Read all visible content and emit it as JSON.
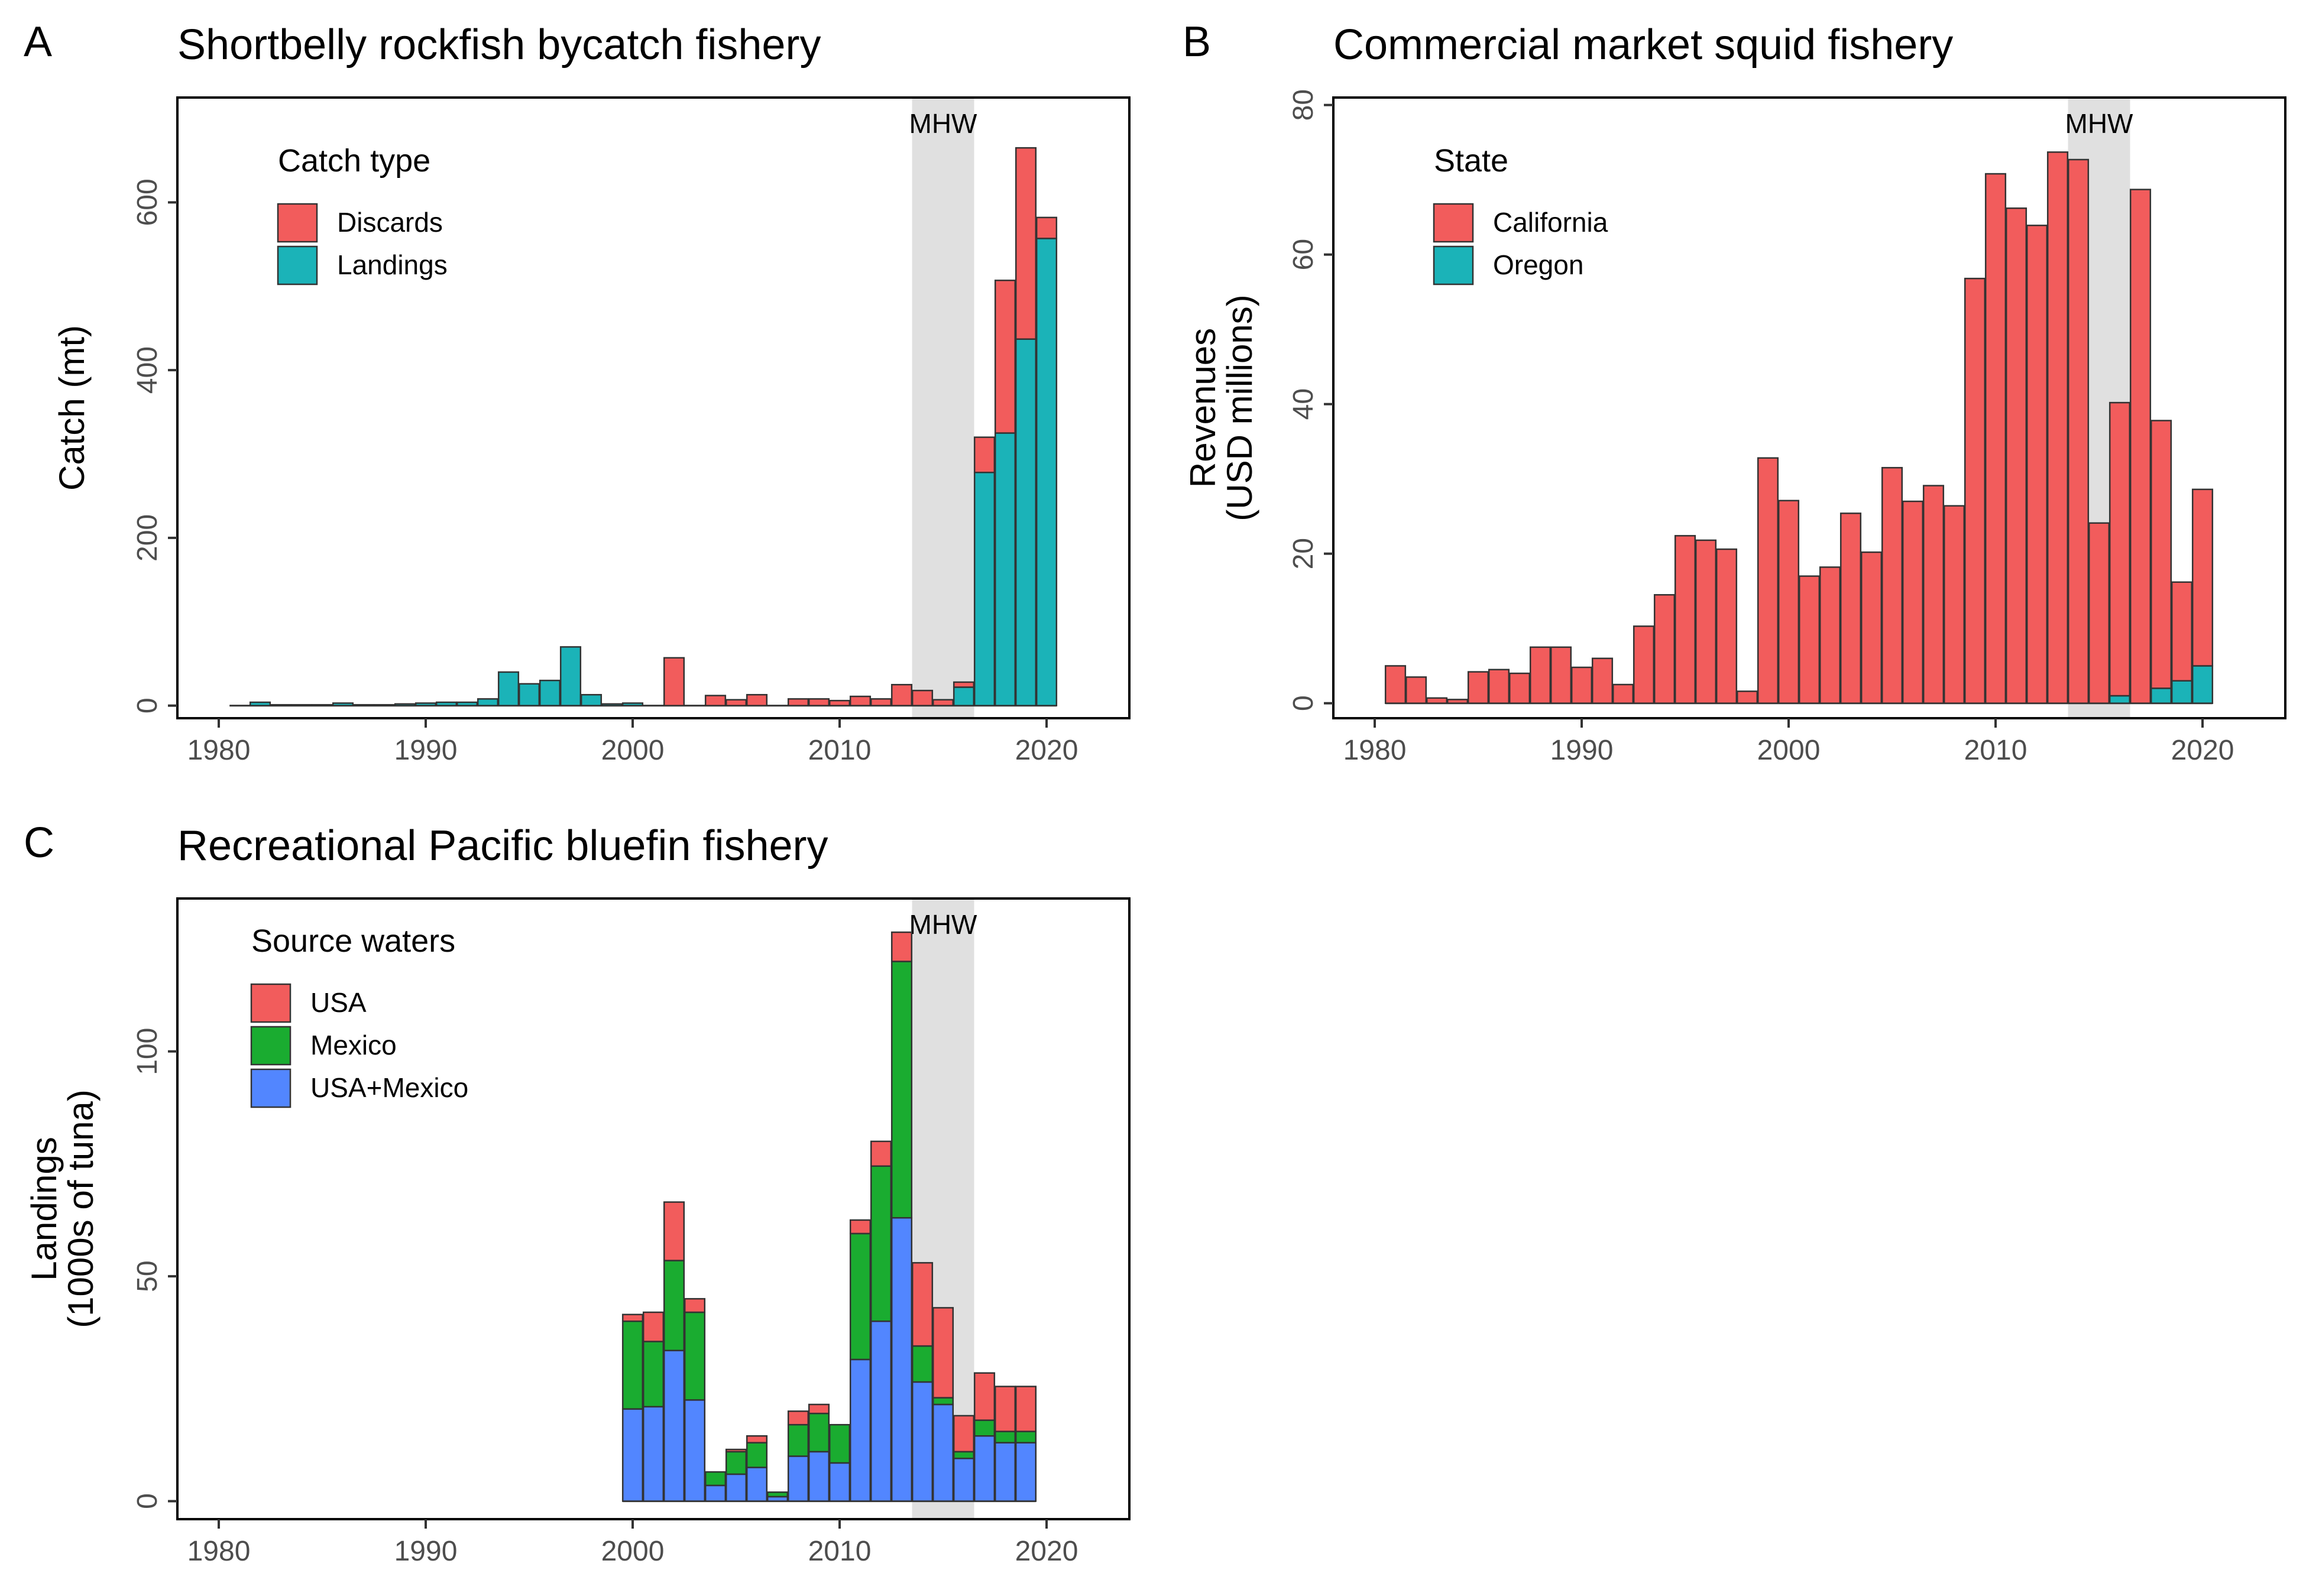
{
  "chart_data": [
    {
      "panel": "A",
      "type": "bar",
      "stacked": true,
      "title": "Shortbelly rockfish bycatch fishery",
      "xlabel": "",
      "ylabel": "Catch (mt)",
      "xlim": [
        1978,
        2024
      ],
      "ylim": [
        -15,
        725
      ],
      "xticks": [
        1980,
        1990,
        2000,
        2010,
        2020
      ],
      "yticks": [
        0,
        200,
        400,
        600
      ],
      "annotation": {
        "text": "MHW",
        "x_range": [
          2013.5,
          2016.5
        ]
      },
      "legend": {
        "title": "Catch type",
        "position": "top-left"
      },
      "x": [
        1981,
        1982,
        1983,
        1984,
        1985,
        1986,
        1987,
        1988,
        1989,
        1990,
        1991,
        1992,
        1993,
        1994,
        1995,
        1996,
        1997,
        1998,
        1999,
        2000,
        2001,
        2002,
        2003,
        2004,
        2005,
        2006,
        2007,
        2008,
        2009,
        2010,
        2011,
        2012,
        2013,
        2014,
        2015,
        2016,
        2017,
        2018,
        2019,
        2020
      ],
      "series": [
        {
          "name": "Landings",
          "color": "#1bb3b8",
          "values": [
            0,
            4,
            1,
            1,
            1,
            3,
            1,
            1,
            2,
            3,
            4,
            4,
            8,
            40,
            26,
            30,
            70,
            13,
            2,
            3,
            0,
            0,
            0,
            0,
            0,
            0,
            0,
            0,
            0,
            0,
            0,
            0,
            0,
            0,
            0,
            22,
            278,
            325,
            437,
            557
          ]
        },
        {
          "name": "Discards",
          "color": "#f25c5c",
          "values": [
            0,
            0,
            0,
            0,
            0,
            0,
            0,
            0,
            0,
            0,
            0,
            0,
            0,
            0,
            0,
            0,
            0,
            0,
            0,
            0,
            0,
            57,
            0,
            12,
            7,
            13,
            0,
            8,
            8,
            6,
            11,
            8,
            25,
            18,
            7,
            6,
            42,
            182,
            228,
            25
          ]
        }
      ]
    },
    {
      "panel": "B",
      "type": "bar",
      "stacked": true,
      "title": "Commercial market squid fishery",
      "xlabel": "",
      "ylabel": "Revenues\n(USD millions)",
      "xlim": [
        1978,
        2024
      ],
      "ylim": [
        -2,
        81
      ],
      "xticks": [
        1980,
        1990,
        2000,
        2010,
        2020
      ],
      "yticks": [
        0,
        20,
        40,
        60,
        80
      ],
      "annotation": {
        "text": "MHW",
        "x_range": [
          2013.5,
          2016.5
        ]
      },
      "legend": {
        "title": "State",
        "position": "top-left"
      },
      "x": [
        1981,
        1982,
        1983,
        1984,
        1985,
        1986,
        1987,
        1988,
        1989,
        1990,
        1991,
        1992,
        1993,
        1994,
        1995,
        1996,
        1997,
        1998,
        1999,
        2000,
        2001,
        2002,
        2003,
        2004,
        2005,
        2006,
        2007,
        2008,
        2009,
        2010,
        2011,
        2012,
        2013,
        2014,
        2015,
        2016,
        2017,
        2018,
        2019,
        2020
      ],
      "series": [
        {
          "name": "Oregon",
          "color": "#1bb3b8",
          "values": [
            0,
            0,
            0,
            0,
            0,
            0,
            0,
            0,
            0,
            0,
            0,
            0,
            0,
            0,
            0,
            0,
            0,
            0,
            0,
            0,
            0,
            0,
            0,
            0,
            0,
            0,
            0,
            0,
            0,
            0,
            0,
            0,
            0,
            0,
            0,
            1,
            0,
            2,
            3,
            5
          ]
        },
        {
          "name": "California",
          "color": "#f25c5c",
          "values": [
            5,
            3.5,
            0.7,
            0.5,
            4.2,
            4.5,
            4,
            7.5,
            7.5,
            4.8,
            6,
            2.5,
            10.3,
            14.5,
            22.4,
            21.8,
            20.6,
            1.6,
            32.8,
            27.1,
            17,
            18.2,
            25.4,
            20.2,
            31.5,
            27,
            29.1,
            26.4,
            56.8,
            70.8,
            66.2,
            63.9,
            73.7,
            72.7,
            24.1,
            39.2,
            68.7,
            35.8,
            13.2,
            23.6
          ]
        }
      ]
    },
    {
      "panel": "C",
      "type": "bar",
      "stacked": true,
      "title": "Recreational Pacific bluefin fishery",
      "xlabel": "",
      "ylabel": "Landings\n(1000s of tuna)",
      "xlim": [
        1978,
        2024
      ],
      "ylim": [
        -4,
        134
      ],
      "xticks": [
        1980,
        1990,
        2000,
        2010,
        2020
      ],
      "yticks": [
        0,
        50,
        100
      ],
      "annotation": {
        "text": "MHW",
        "x_range": [
          2013.5,
          2016.5
        ]
      },
      "legend": {
        "title": "Source waters",
        "position": "top-left"
      },
      "x": [
        2000,
        2001,
        2002,
        2003,
        2004,
        2005,
        2006,
        2007,
        2008,
        2009,
        2010,
        2011,
        2012,
        2013,
        2014,
        2015,
        2016,
        2017,
        2018,
        2019
      ],
      "series": [
        {
          "name": "USA+Mexico",
          "color": "#5286ff",
          "values": [
            20.5,
            21,
            33.5,
            22.5,
            3.5,
            6,
            7.5,
            1,
            10,
            11,
            8.5,
            31.5,
            40,
            63,
            26.5,
            21.5,
            9.5,
            14.5,
            13,
            13
          ]
        },
        {
          "name": "Mexico",
          "color": "#1aac30",
          "values": [
            19.5,
            14.5,
            20,
            19.5,
            3,
            5,
            5.5,
            1,
            7,
            8.5,
            8.5,
            28,
            34.5,
            57,
            8,
            1.5,
            1.5,
            3.5,
            2.5,
            2.5
          ]
        },
        {
          "name": "USA",
          "color": "#f25c5c",
          "values": [
            1.5,
            6.5,
            13,
            3,
            0,
            0.5,
            1.5,
            0,
            3,
            2,
            0,
            3,
            5.5,
            6.5,
            18.5,
            20,
            8,
            10.5,
            10,
            10
          ]
        }
      ]
    }
  ]
}
